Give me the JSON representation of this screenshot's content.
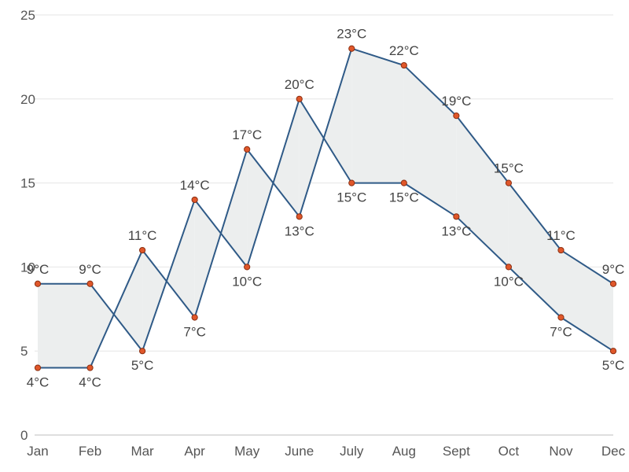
{
  "chart_data": {
    "type": "area",
    "categories": [
      "Jan",
      "Feb",
      "Mar",
      "Apr",
      "May",
      "June",
      "July",
      "Aug",
      "Sept",
      "Oct",
      "Nov",
      "Dec"
    ],
    "series": [
      {
        "values": [
          9,
          9,
          5,
          14,
          10,
          20,
          15,
          15,
          13,
          10,
          7,
          5
        ],
        "labels": [
          "9°C",
          "9°C",
          "5°C",
          "14°C",
          "10°C",
          "20°C",
          "15°C",
          "15°C",
          "13°C",
          "10°C",
          "7°C",
          "5°C"
        ]
      },
      {
        "values": [
          4,
          4,
          11,
          7,
          17,
          13,
          23,
          22,
          19,
          15,
          11,
          9
        ],
        "labels": [
          "4°C",
          "4°C",
          "11°C",
          "7°C",
          "17°C",
          "13°C",
          "23°C",
          "22°C",
          "19°C",
          "15°C",
          "11°C",
          "9°C"
        ]
      }
    ],
    "ylim": [
      0,
      25
    ],
    "yticks": [
      "0",
      "5",
      "10",
      "15",
      "20",
      "25"
    ],
    "xlabel": "",
    "ylabel": "",
    "grid": true,
    "colors": {
      "line": "#2f5a87",
      "fill": "#eceeee",
      "marker_fill": "#e0572a",
      "marker_stroke": "#8a2f12",
      "grid": "#e6e6e6",
      "axis": "#bcbcbc"
    }
  }
}
